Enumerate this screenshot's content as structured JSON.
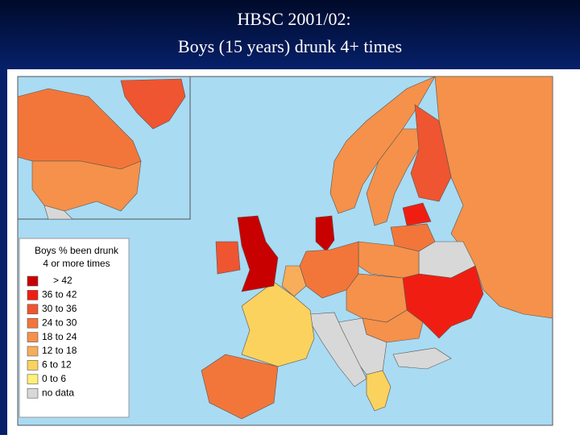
{
  "title": [
    "HBSC 2001/02:",
    "Boys (15 years) drunk 4+ times"
  ],
  "legend": {
    "title": [
      "Boys % been drunk",
      "4 or more times"
    ],
    "items": [
      {
        "label": "> 42",
        "color": "#c80000"
      },
      {
        "label": "36 to 42",
        "color": "#f01e12"
      },
      {
        "label": "30 to 36",
        "color": "#ef5530"
      },
      {
        "label": "24 to 30",
        "color": "#f2763a"
      },
      {
        "label": "18 to 24",
        "color": "#f5914a"
      },
      {
        "label": "12 to 18",
        "color": "#f7ad5a"
      },
      {
        "label": "6 to 12",
        "color": "#fbd25e"
      },
      {
        "label": "0 to 6",
        "color": "#fff07a"
      },
      {
        "label": "no data",
        "color": "#d8d8d8"
      }
    ]
  }
}
